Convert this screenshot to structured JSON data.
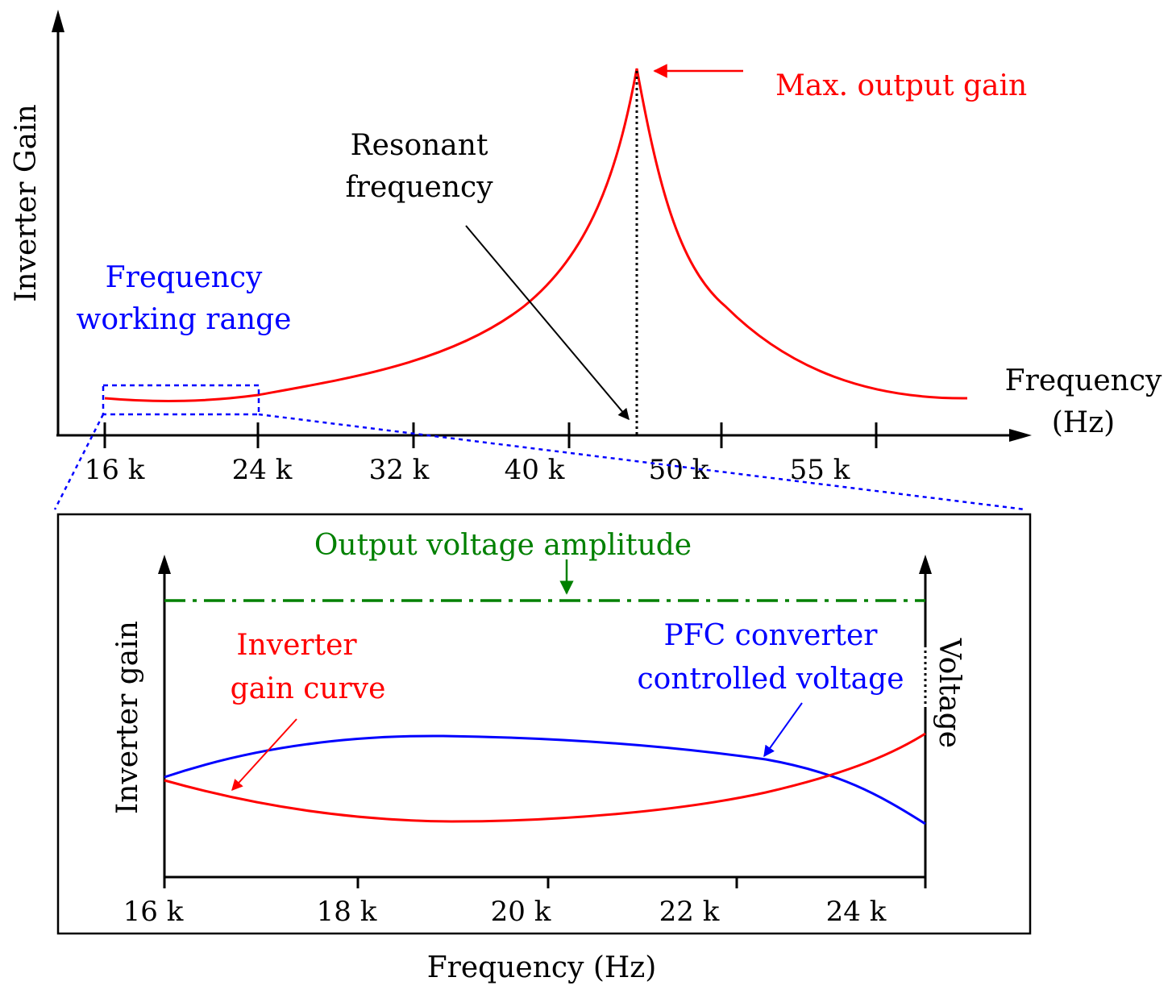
{
  "colors": {
    "axis": "#000000",
    "gain_curve": "#ff0000",
    "working_range": "#0000ff",
    "pfc_curve": "#0000ff",
    "output_amplitude": "#008000"
  },
  "top_chart": {
    "y_label": "Inverter Gain",
    "x_label_line1": "Frequency",
    "x_label_line2": "(Hz)",
    "x_ticks": [
      "16 k",
      "24 k",
      "32 k",
      "40 k",
      "50 k",
      "55 k"
    ],
    "annotations": {
      "working_range_line1": "Frequency",
      "working_range_line2": "working range",
      "resonant_line1": "Resonant",
      "resonant_line2": "frequency",
      "max_gain": "Max. output gain"
    }
  },
  "bottom_chart": {
    "left_y_label": "Inverter gain",
    "right_y_label": "Voltage",
    "x_label": "Frequency (Hz)",
    "x_ticks": [
      "16 k",
      "18 k",
      "20 k",
      "22 k",
      "24 k"
    ],
    "annotations": {
      "output_voltage": "Output voltage amplitude",
      "inverter_line1": "Inverter",
      "inverter_line2": "gain curve",
      "pfc_line1": "PFC converter",
      "pfc_line2": "controlled voltage"
    }
  }
}
